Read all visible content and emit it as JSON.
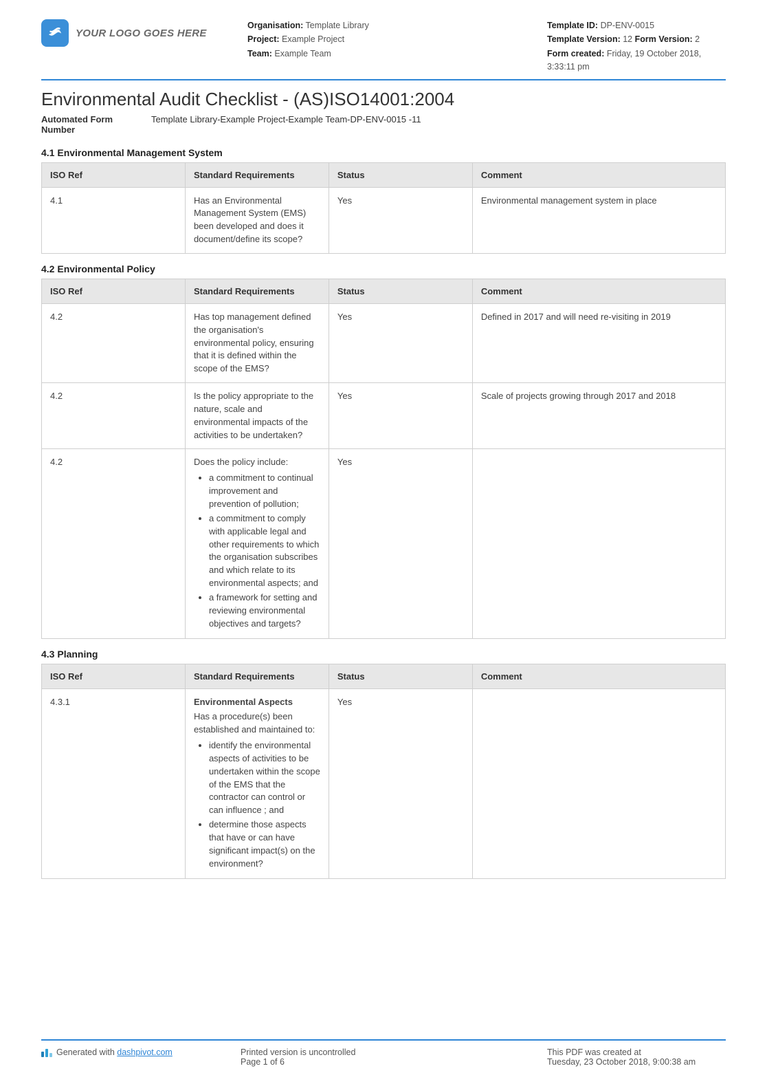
{
  "header": {
    "logo_text": "YOUR LOGO GOES HERE",
    "meta_left": {
      "organisation_label": "Organisation:",
      "organisation_value": "Template Library",
      "project_label": "Project:",
      "project_value": "Example Project",
      "team_label": "Team:",
      "team_value": "Example Team"
    },
    "meta_right": {
      "template_id_label": "Template ID:",
      "template_id_value": "DP-ENV-0015",
      "template_version_label": "Template Version:",
      "template_version_value": "12",
      "form_version_label": "Form Version:",
      "form_version_value": "2",
      "form_created_label": "Form created:",
      "form_created_value": "Friday, 19 October 2018, 3:33:11 pm"
    }
  },
  "title": "Environmental Audit Checklist - (AS)ISO14001:2004",
  "form_number_label": "Automated Form Number",
  "form_number_value": "Template Library-Example Project-Example Team-DP-ENV-0015   -11",
  "columns": {
    "iso": "ISO Ref",
    "req": "Standard Requirements",
    "status": "Status",
    "comment": "Comment"
  },
  "sections": [
    {
      "title": "4.1 Environmental Management System",
      "rows": [
        {
          "iso": "4.1",
          "req_text": "Has an Environmental Management System (EMS) been developed and does it document/define its scope?",
          "status": "Yes",
          "comment": "Environmental management system in place"
        }
      ]
    },
    {
      "title": "4.2 Environmental Policy",
      "rows": [
        {
          "iso": "4.2",
          "req_text": "Has top management defined the organisation's environmental policy, ensuring that it is defined within the scope of the EMS?",
          "status": "Yes",
          "comment": "Defined in 2017 and will need re-visiting in 2019"
        },
        {
          "iso": "4.2",
          "req_text": "Is the policy appropriate to the nature, scale and environmental impacts of the activities to be undertaken?",
          "status": "Yes",
          "comment": "Scale of projects growing through 2017 and 2018"
        },
        {
          "iso": "4.2",
          "req_intro": "Does the policy include:",
          "req_bullets": [
            "a commitment to continual improvement and prevention of pollution;",
            "a commitment to comply with applicable legal and other requirements to which the organisation subscribes and which relate to its environmental aspects; and",
            "a framework for setting and reviewing environmental objectives and targets?"
          ],
          "status": "Yes",
          "comment": ""
        }
      ]
    },
    {
      "title": "4.3 Planning",
      "rows": [
        {
          "iso": "4.3.1",
          "req_subtitle": "Environmental Aspects",
          "req_intro": "Has a procedure(s) been established and maintained to:",
          "req_bullets": [
            "identify the environmental aspects of activities to be undertaken within the scope of the EMS that the contractor can control or can influence ; and",
            "determine those aspects that have or can have significant impact(s) on the environment?"
          ],
          "status": "Yes",
          "comment": ""
        }
      ]
    }
  ],
  "footer": {
    "generated_prefix": "Generated with ",
    "generated_link": "dashpivot.com",
    "uncontrolled": "Printed version is uncontrolled",
    "page": "Page 1 of 6",
    "created_at_label": "This PDF was created at",
    "created_at_value": "Tuesday, 23 October 2018, 9:00:38 am"
  }
}
